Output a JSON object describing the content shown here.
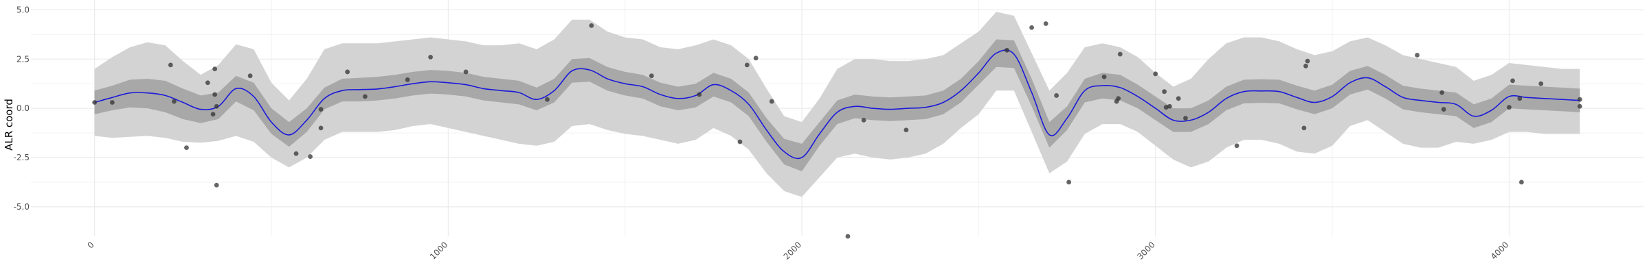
{
  "chart_data": {
    "type": "line",
    "title": "",
    "xlabel": "",
    "ylabel": "ALR coord",
    "xlim": [
      -180,
      4380
    ],
    "ylim": [
      -6.5,
      5.5
    ],
    "grid": true,
    "x_ticks": [
      0,
      1000,
      2000,
      3000,
      4000
    ],
    "x_tick_labels": [
      "0",
      "1000",
      "2000",
      "3000",
      "4000"
    ],
    "y_ticks": [
      -5.0,
      -2.5,
      0.0,
      2.5,
      5.0
    ],
    "y_tick_labels": [
      "-5.0",
      "-2.5",
      "0.0",
      "2.5",
      "5.0"
    ],
    "x": [
      0,
      50,
      100,
      150,
      200,
      250,
      300,
      350,
      400,
      450,
      500,
      550,
      600,
      650,
      700,
      750,
      800,
      850,
      900,
      950,
      1000,
      1050,
      1100,
      1150,
      1200,
      1250,
      1300,
      1350,
      1400,
      1450,
      1500,
      1550,
      1600,
      1650,
      1700,
      1750,
      1800,
      1850,
      1900,
      1950,
      2000,
      2050,
      2100,
      2150,
      2200,
      2250,
      2300,
      2350,
      2400,
      2450,
      2500,
      2550,
      2600,
      2650,
      2700,
      2750,
      2800,
      2850,
      2900,
      2950,
      3000,
      3050,
      3100,
      3150,
      3200,
      3250,
      3300,
      3350,
      3400,
      3450,
      3500,
      3550,
      3600,
      3650,
      3700,
      3750,
      3800,
      3850,
      3900,
      3950,
      4000,
      4050,
      4100,
      4150,
      4200
    ],
    "series": [
      {
        "role": "mean",
        "color": "#1a1adb",
        "values": [
          0.3,
          0.55,
          0.78,
          0.78,
          0.65,
          0.3,
          -0.05,
          0.1,
          1.0,
          0.6,
          -0.7,
          -1.35,
          -0.6,
          0.5,
          0.9,
          0.95,
          0.98,
          1.1,
          1.25,
          1.35,
          1.3,
          1.2,
          1.0,
          0.9,
          0.8,
          0.45,
          0.9,
          1.9,
          1.95,
          1.5,
          1.25,
          1.1,
          0.7,
          0.5,
          0.65,
          1.2,
          0.9,
          0.2,
          -1.1,
          -2.2,
          -2.5,
          -1.3,
          -0.2,
          0.1,
          0.0,
          -0.05,
          0.0,
          0.05,
          0.3,
          0.9,
          1.8,
          2.8,
          2.75,
          0.8,
          -1.35,
          -0.5,
          0.9,
          1.15,
          1.05,
          0.6,
          0.0,
          -0.6,
          -0.6,
          -0.2,
          0.5,
          0.85,
          0.88,
          0.85,
          0.55,
          0.3,
          0.6,
          1.3,
          1.55,
          1.1,
          0.55,
          0.4,
          0.3,
          0.2,
          -0.4,
          -0.1,
          0.6,
          0.55,
          0.5,
          0.45,
          0.4
        ]
      },
      {
        "role": "inner-band-lower",
        "color": "#a8a8a8",
        "values": [
          -0.3,
          -0.1,
          0.05,
          0.0,
          -0.2,
          -0.55,
          -0.75,
          -0.55,
          0.35,
          -0.1,
          -1.3,
          -1.95,
          -1.2,
          -0.05,
          0.35,
          0.35,
          0.4,
          0.5,
          0.65,
          0.75,
          0.7,
          0.6,
          0.4,
          0.3,
          0.2,
          -0.1,
          0.3,
          1.3,
          1.35,
          0.9,
          0.65,
          0.5,
          0.1,
          -0.1,
          0.05,
          0.6,
          0.3,
          -0.4,
          -1.7,
          -2.85,
          -3.2,
          -1.9,
          -0.8,
          -0.5,
          -0.6,
          -0.65,
          -0.6,
          -0.55,
          -0.3,
          0.3,
          1.2,
          2.1,
          2.05,
          0.1,
          -2.0,
          -1.1,
          0.3,
          0.5,
          0.4,
          0.0,
          -0.6,
          -1.2,
          -1.2,
          -0.8,
          -0.1,
          0.25,
          0.28,
          0.25,
          -0.05,
          -0.3,
          0.0,
          0.7,
          0.95,
          0.5,
          -0.05,
          -0.2,
          -0.3,
          -0.4,
          -1.0,
          -0.7,
          0.0,
          -0.05,
          -0.1,
          -0.15,
          -0.2
        ]
      },
      {
        "role": "inner-band-upper",
        "color": "#a8a8a8",
        "values": [
          0.9,
          1.15,
          1.45,
          1.5,
          1.4,
          1.0,
          0.65,
          0.8,
          1.65,
          1.3,
          0.0,
          -0.7,
          0.0,
          1.05,
          1.5,
          1.55,
          1.6,
          1.7,
          1.85,
          1.95,
          1.9,
          1.8,
          1.6,
          1.5,
          1.4,
          1.05,
          1.5,
          2.5,
          2.55,
          2.1,
          1.85,
          1.7,
          1.3,
          1.1,
          1.25,
          1.8,
          1.5,
          0.8,
          -0.5,
          -1.55,
          -1.8,
          -0.7,
          0.4,
          0.7,
          0.6,
          0.55,
          0.6,
          0.65,
          0.9,
          1.5,
          2.4,
          3.5,
          3.45,
          1.5,
          -0.7,
          0.1,
          1.5,
          1.8,
          1.7,
          1.2,
          0.6,
          0.0,
          0.0,
          0.4,
          1.1,
          1.45,
          1.48,
          1.45,
          1.15,
          0.9,
          1.2,
          1.9,
          2.15,
          1.7,
          1.15,
          1.0,
          0.9,
          0.8,
          0.2,
          0.5,
          1.2,
          1.15,
          1.1,
          1.05,
          1.0
        ]
      },
      {
        "role": "outer-band-lower",
        "color": "#d3d3d3",
        "values": [
          -1.4,
          -1.5,
          -1.45,
          -1.4,
          -1.5,
          -1.7,
          -1.75,
          -1.65,
          -1.4,
          -1.7,
          -2.5,
          -3.0,
          -2.5,
          -1.6,
          -1.2,
          -1.2,
          -1.2,
          -1.1,
          -0.9,
          -0.8,
          -1.0,
          -1.2,
          -1.4,
          -1.6,
          -1.8,
          -1.9,
          -1.7,
          -0.9,
          -0.8,
          -1.1,
          -1.3,
          -1.4,
          -1.6,
          -1.8,
          -1.6,
          -1.0,
          -1.4,
          -2.1,
          -3.3,
          -4.2,
          -4.5,
          -3.5,
          -2.5,
          -2.3,
          -2.5,
          -2.6,
          -2.5,
          -2.3,
          -1.8,
          -1.0,
          -0.3,
          0.9,
          0.9,
          -1.2,
          -3.3,
          -2.7,
          -1.3,
          -0.8,
          -0.8,
          -1.2,
          -1.9,
          -2.6,
          -3.0,
          -2.7,
          -2.0,
          -1.6,
          -1.6,
          -1.8,
          -2.2,
          -2.3,
          -1.9,
          -0.9,
          -0.6,
          -1.2,
          -1.8,
          -2.0,
          -2.0,
          -1.7,
          -1.8,
          -1.6,
          -1.2,
          -1.2,
          -1.3,
          -1.3,
          -1.3
        ]
      },
      {
        "role": "outer-band-upper",
        "color": "#d3d3d3",
        "values": [
          2.0,
          2.6,
          3.1,
          3.35,
          3.2,
          2.4,
          1.7,
          2.2,
          3.25,
          3.0,
          1.3,
          0.4,
          1.5,
          3.0,
          3.3,
          3.3,
          3.3,
          3.4,
          3.5,
          3.6,
          3.5,
          3.4,
          3.2,
          3.2,
          3.3,
          3.0,
          3.5,
          4.5,
          4.5,
          3.9,
          3.6,
          3.5,
          3.1,
          3.0,
          3.2,
          3.5,
          3.2,
          2.5,
          1.0,
          -0.4,
          -0.7,
          0.5,
          2.0,
          2.5,
          2.5,
          2.4,
          2.4,
          2.5,
          2.7,
          3.3,
          3.9,
          4.9,
          4.7,
          2.8,
          0.9,
          1.8,
          3.1,
          3.3,
          3.1,
          2.6,
          1.8,
          1.1,
          1.5,
          2.5,
          3.3,
          3.6,
          3.6,
          3.4,
          3.0,
          2.7,
          2.9,
          3.4,
          3.6,
          3.2,
          2.7,
          2.5,
          2.3,
          2.1,
          1.4,
          1.7,
          2.3,
          2.2,
          2.1,
          2.0,
          2.0
        ]
      }
    ],
    "points": {
      "color": "#333333",
      "x": [
        0,
        50,
        215,
        225,
        260,
        320,
        335,
        340,
        340,
        345,
        345,
        440,
        570,
        610,
        640,
        640,
        715,
        765,
        885,
        950,
        1050,
        1280,
        1405,
        1575,
        1710,
        1825,
        1845,
        1870,
        1915,
        2130,
        2175,
        2295,
        2580,
        2650,
        2690,
        2720,
        2755,
        2855,
        2890,
        2895,
        2900,
        3000,
        3025,
        3030,
        3040,
        3065,
        3085,
        3230,
        3420,
        3425,
        3430,
        3740,
        3810,
        3815,
        4000,
        4010,
        4030,
        4035,
        4090,
        4200,
        4200
      ],
      "y": [
        0.3,
        0.3,
        2.2,
        0.35,
        -2.0,
        1.3,
        -0.3,
        0.7,
        2.0,
        -3.9,
        0.1,
        1.65,
        -2.3,
        -2.45,
        -0.05,
        -1.0,
        1.85,
        0.6,
        1.45,
        2.6,
        1.85,
        0.45,
        4.2,
        1.65,
        0.7,
        -1.7,
        2.2,
        2.55,
        0.35,
        -6.5,
        -0.6,
        -1.1,
        2.95,
        4.1,
        4.3,
        0.65,
        -3.75,
        1.6,
        0.35,
        0.5,
        2.75,
        1.75,
        0.85,
        0.05,
        0.1,
        0.5,
        -0.5,
        -1.9,
        -1.0,
        2.15,
        2.4,
        2.7,
        0.8,
        -0.05,
        0.05,
        1.4,
        0.5,
        -3.75,
        1.25,
        0.1,
        0.45
      ]
    }
  }
}
